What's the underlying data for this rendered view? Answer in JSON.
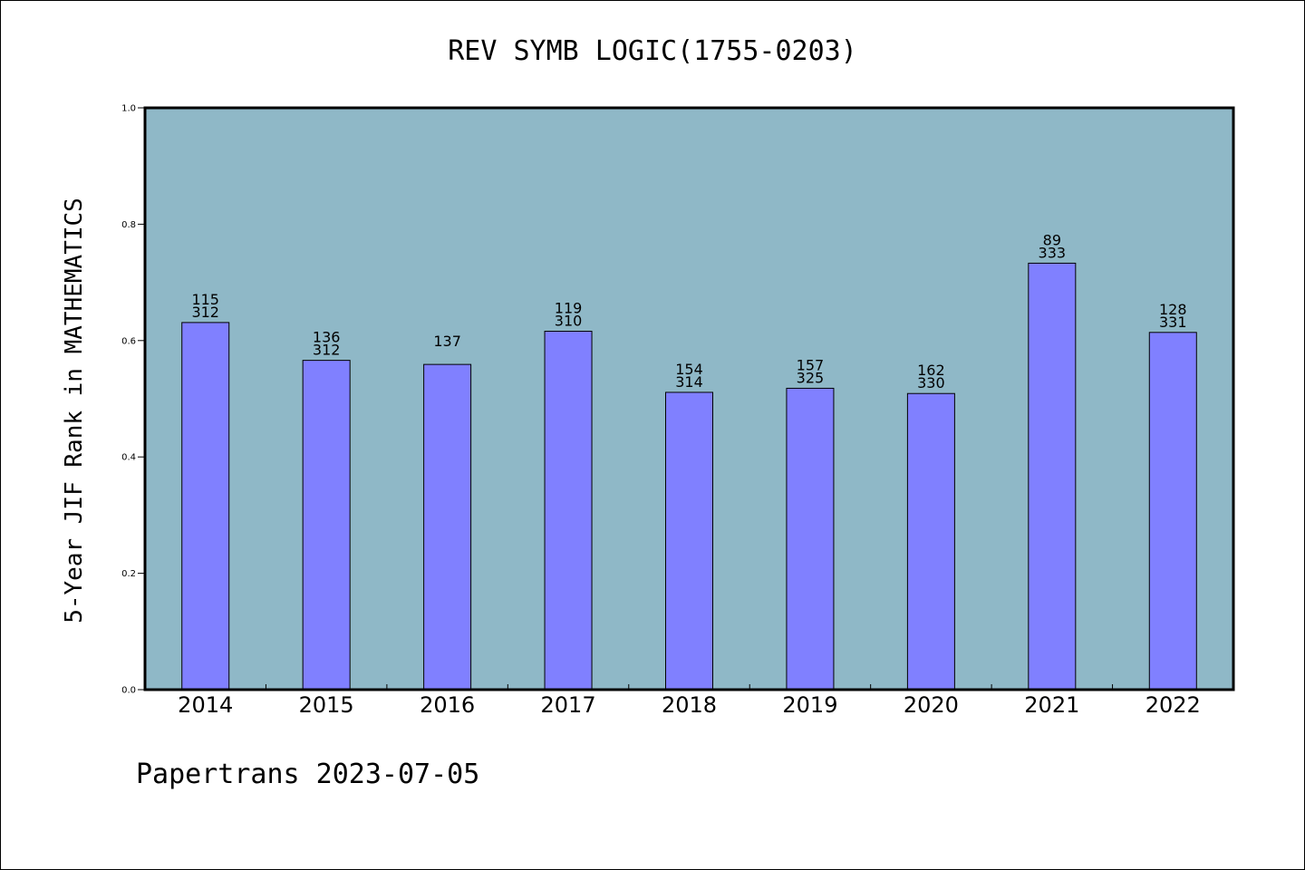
{
  "chart_data": {
    "type": "bar",
    "title": "REV SYMB LOGIC(1755-0203)",
    "xlabel": "",
    "ylabel": "5-Year JIF Rank in MATHEMATICS",
    "ylim": [
      0,
      1.0
    ],
    "yticks": [
      "0.0",
      "0.2",
      "0.4",
      "0.6",
      "0.8",
      "1.0"
    ],
    "categories": [
      "2014",
      "2015",
      "2016",
      "2017",
      "2018",
      "2019",
      "2020",
      "2021",
      "2022"
    ],
    "values": [
      0.631,
      0.566,
      0.559,
      0.616,
      0.511,
      0.518,
      0.509,
      0.733,
      0.614
    ],
    "rank": [
      "115",
      "136",
      "137",
      "119",
      "154",
      "157",
      "162",
      "89",
      "128"
    ],
    "total": [
      "312",
      "312",
      "",
      "310",
      "314",
      "325",
      "330",
      "333",
      "331"
    ],
    "grid": false,
    "colors": {
      "plot_bg": "#8fb8c7",
      "bar": "#8080ff",
      "bar_edge": "#000000"
    }
  },
  "footer": "Papertrans 2023-07-05"
}
